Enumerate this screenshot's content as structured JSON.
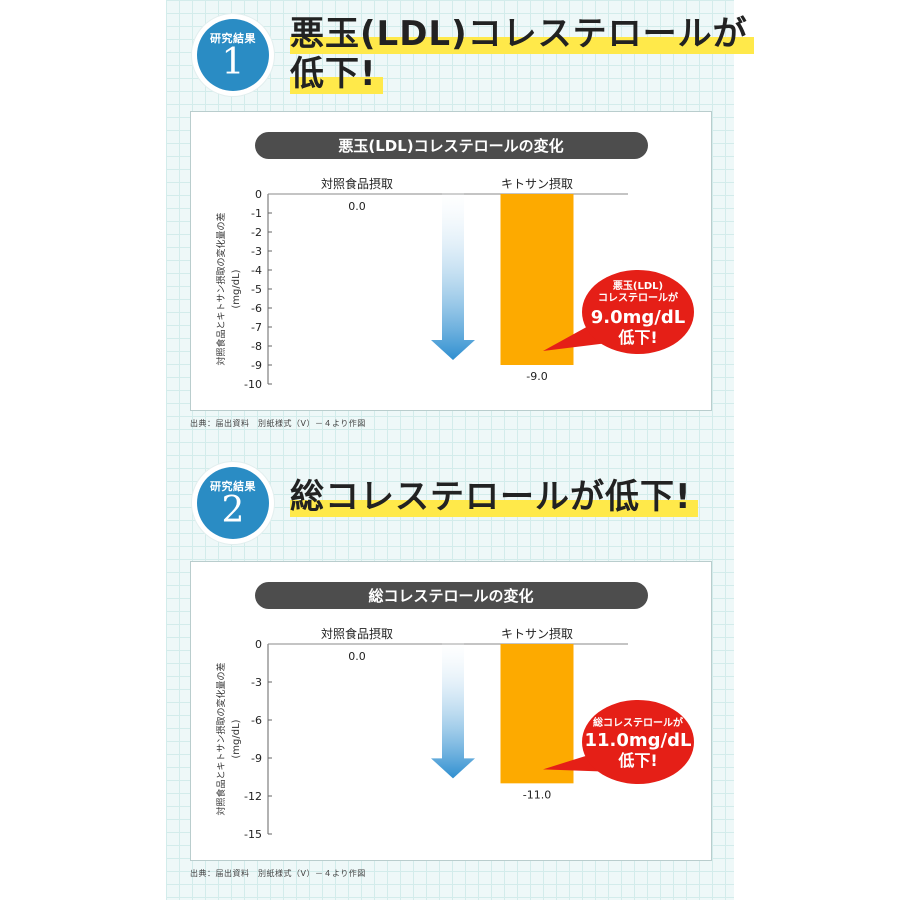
{
  "sections": [
    {
      "badge_label": "研究結果",
      "badge_number": "1",
      "headline_line1": "悪玉(LDL)コレステロールが",
      "headline_line2": "低下!",
      "source": "出典：届出資料　別紙様式（V）－４より作図",
      "callout_lines": [
        "悪玉(LDL)",
        "コレステロールが",
        "9.0mg/dL",
        "低下!"
      ]
    },
    {
      "badge_label": "研究結果",
      "badge_number": "2",
      "headline_line1": "総コレステロールが低下!",
      "source": "出典：届出資料　別紙様式（V）－４より作図",
      "callout_lines": [
        "総コレステロールが",
        "11.0mg/dL",
        "低下!"
      ]
    }
  ],
  "chart_data": [
    {
      "type": "bar",
      "title": "悪玉(LDL)コレステロールの変化",
      "ylabel": "対照食品とキトサン摂取の変化量の差 (mg/dL)",
      "categories": [
        "対照食品摂取",
        "キトサン摂取"
      ],
      "values": [
        0.0,
        -9.0
      ],
      "value_labels": [
        "0.0",
        "-9.0"
      ],
      "ylim": [
        -10,
        0
      ],
      "yticks": [
        0,
        -1,
        -2,
        -3,
        -4,
        -5,
        -6,
        -7,
        -8,
        -9,
        -10
      ],
      "ytick_labels": [
        "0",
        "-1",
        "-2",
        "-3",
        "-4",
        "-5",
        "-6",
        "-7",
        "-8",
        "-9",
        "-10"
      ],
      "bar_color": "#fdaa00",
      "arrow_color": "#2f8fd0"
    },
    {
      "type": "bar",
      "title": "総コレステロールの変化",
      "ylabel": "対照食品とキトサン摂取の変化量の差 (mg/dL)",
      "categories": [
        "対照食品摂取",
        "キトサン摂取"
      ],
      "values": [
        0.0,
        -11.0
      ],
      "value_labels": [
        "0.0",
        "-11.0"
      ],
      "ylim": [
        -15,
        0
      ],
      "yticks": [
        0,
        -3,
        -6,
        -9,
        -12,
        -15
      ],
      "ytick_labels": [
        "0",
        "-3",
        "-6",
        "-9",
        "-12",
        "-15"
      ],
      "bar_color": "#fdaa00",
      "arrow_color": "#2f8fd0"
    }
  ]
}
